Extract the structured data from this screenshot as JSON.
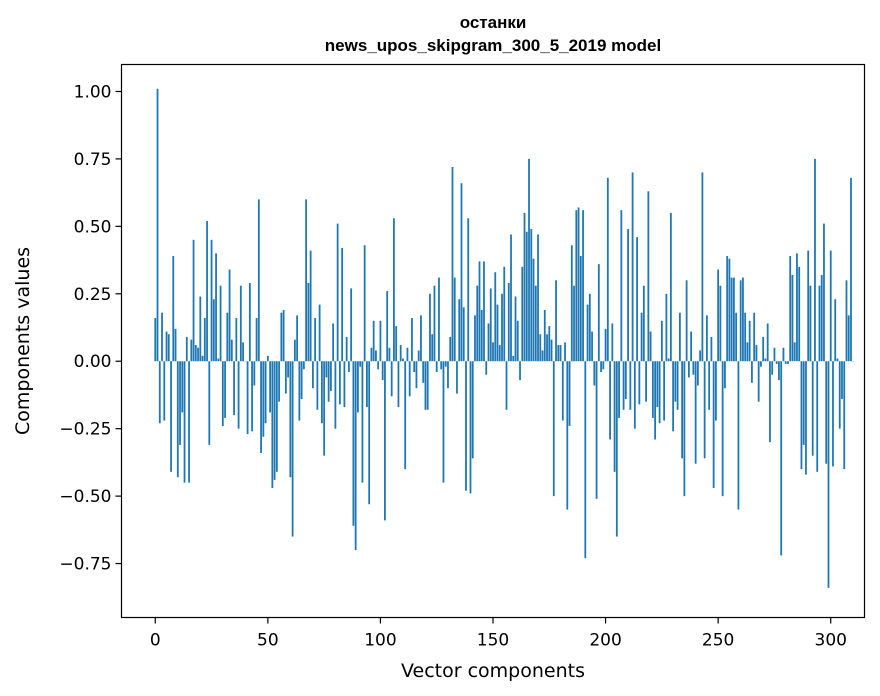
{
  "chart_data": {
    "type": "bar",
    "title_line1": "останки",
    "title_line2": "news_upos_skipgram_300_5_2019 model",
    "xlabel": "Vector components",
    "ylabel": "Components values",
    "xlim": [
      -15,
      315
    ],
    "ylim": [
      -0.95,
      1.1
    ],
    "xticks": [
      0,
      50,
      100,
      150,
      200,
      250,
      300
    ],
    "xtick_labels": [
      "0",
      "50",
      "100",
      "150",
      "200",
      "250",
      "300"
    ],
    "yticks": [
      -0.75,
      -0.5,
      -0.25,
      0.0,
      0.25,
      0.5,
      0.75,
      1.0
    ],
    "ytick_labels": [
      "−0.75",
      "−0.50",
      "−0.25",
      "0.00",
      "0.25",
      "0.50",
      "0.75",
      "1.00"
    ],
    "bar_color": "#1f77b4",
    "grid": false,
    "values": [
      0.16,
      1.01,
      -0.23,
      0.18,
      -0.22,
      0.11,
      0.1,
      -0.41,
      0.39,
      0.12,
      -0.43,
      -0.31,
      -0.19,
      -0.45,
      0.09,
      -0.45,
      0.08,
      0.45,
      0.06,
      0.05,
      0.24,
      0.02,
      0.16,
      0.52,
      -0.31,
      0.45,
      0.23,
      0.4,
      0.01,
      0.28,
      -0.24,
      -0.21,
      0.18,
      0.34,
      0.08,
      -0.2,
      0.16,
      -0.25,
      0.28,
      0.07,
      0.0,
      -0.27,
      0.29,
      -0.26,
      -0.09,
      0.16,
      0.6,
      -0.34,
      -0.28,
      -0.23,
      0.02,
      -0.19,
      -0.47,
      -0.44,
      -0.41,
      -0.15,
      0.18,
      0.19,
      -0.12,
      -0.06,
      -0.43,
      -0.65,
      0.08,
      0.17,
      -0.22,
      -0.14,
      -0.03,
      0.6,
      0.29,
      0.41,
      -0.1,
      0.16,
      -0.18,
      0.21,
      -0.23,
      -0.35,
      -0.06,
      -0.15,
      -0.11,
      0.14,
      -0.25,
      0.51,
      -0.16,
      0.42,
      -0.17,
      0.09,
      -0.04,
      0.27,
      -0.61,
      -0.7,
      -0.19,
      -0.02,
      -0.45,
      0.43,
      -0.17,
      -0.53,
      0.05,
      0.15,
      0.04,
      -0.03,
      0.15,
      -0.07,
      -0.59,
      0.26,
      0.05,
      -0.13,
      0.53,
      0.13,
      -0.17,
      0.06,
      0.01,
      -0.4,
      0.05,
      -0.13,
      0.16,
      -0.04,
      -0.1,
      0.04,
      0.17,
      -0.08,
      -0.18,
      -0.18,
      0.25,
      0.1,
      0.28,
      -0.04,
      0.31,
      -0.03,
      -0.45,
      -0.02,
      -0.1,
      0.09,
      0.72,
      0.31,
      -0.12,
      0.23,
      0.66,
      0.2,
      -0.48,
      0.53,
      -0.49,
      -0.36,
      0.17,
      0.28,
      0.37,
      0.19,
      0.37,
      -0.05,
      0.14,
      0.27,
      0.07,
      0.33,
      0.21,
      0.06,
      0.25,
      0.35,
      -0.18,
      0.29,
      0.47,
      0.02,
      0.24,
      0.15,
      -0.07,
      0.35,
      0.55,
      0.48,
      0.75,
      0.49,
      0.38,
      0.28,
      0.47,
      0.1,
      0.04,
      0.19,
      0.1,
      0.13,
      0.08,
      -0.5,
      0.3,
      0.06,
      0.06,
      -0.22,
      0.07,
      -0.55,
      -0.24,
      0.43,
      0.28,
      0.56,
      0.57,
      0.39,
      0.56,
      -0.73,
      0.21,
      0.25,
      0.11,
      -0.09,
      -0.51,
      0.36,
      -0.04,
      -0.03,
      0.12,
      0.68,
      -0.29,
      0.14,
      -0.41,
      -0.65,
      -0.21,
      0.56,
      -0.18,
      -0.14,
      0.49,
      -0.18,
      0.7,
      -0.25,
      0.46,
      -0.16,
      0.18,
      0.28,
      -0.15,
      0.63,
      0.11,
      -0.21,
      -0.29,
      -0.17,
      -0.23,
      0.15,
      -0.22,
      0.25,
      0.01,
      0.55,
      -0.26,
      -0.15,
      -0.18,
      0.18,
      -0.36,
      -0.5,
      0.3,
      -0.06,
      0.11,
      -0.05,
      -0.38,
      -0.09,
      0.04,
      0.7,
      -0.36,
      0.17,
      -0.18,
      0.09,
      -0.47,
      -0.22,
      0.34,
      0.28,
      -0.5,
      -0.1,
      0.39,
      0.38,
      0.31,
      0.31,
      0.18,
      -0.55,
      0.3,
      0.31,
      0.18,
      0.07,
      0.15,
      -0.08,
      0.18,
      0.06,
      -0.15,
      -0.02,
      0.09,
      0.01,
      0.14,
      -0.3,
      -0.05,
      0.05,
      -0.01,
      -0.07,
      -0.72,
      0.05,
      -0.01,
      -0.01,
      0.39,
      0.32,
      0.07,
      0.4,
      0.35,
      -0.4,
      -0.31,
      -0.42,
      0.41,
      0.28,
      -0.35,
      0.75,
      -0.41,
      0.28,
      0.32,
      0.51,
      -0.38,
      -0.84,
      0.41,
      -0.39,
      0.23,
      0.01,
      -0.25,
      -0.14,
      -0.4,
      0.3,
      0.17,
      0.68,
      0.0
    ]
  }
}
